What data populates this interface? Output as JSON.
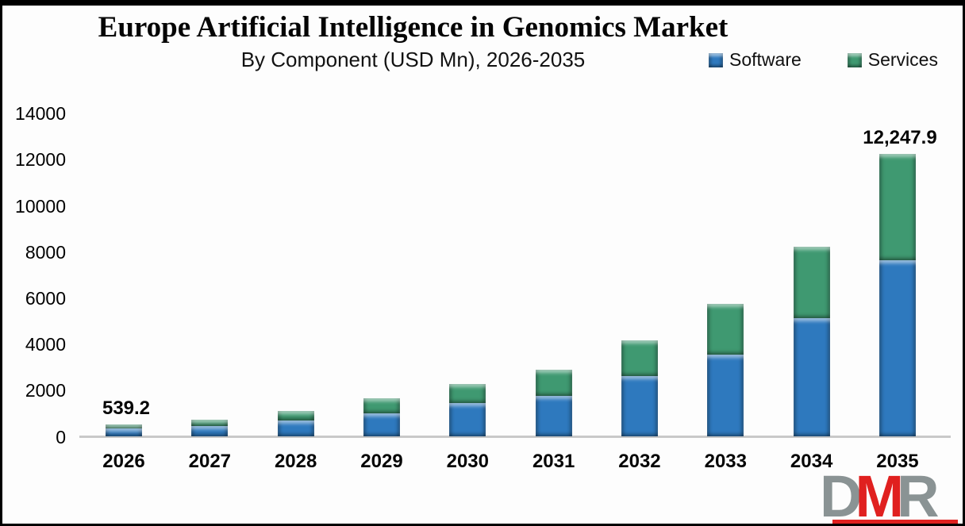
{
  "header": {
    "title": "Europe Artificial Intelligence in Genomics Market",
    "subtitle": "By Component (USD Mn), 2026-2035"
  },
  "legend": [
    {
      "label": "Software",
      "color": "#2E79BE"
    },
    {
      "label": "Services",
      "color": "#3F9971"
    }
  ],
  "chart_data": {
    "type": "bar",
    "stacked": true,
    "title": "Europe Artificial Intelligence in Genomics Market",
    "subtitle": "By Component (USD Mn), 2026-2035",
    "xlabel": "",
    "ylabel": "USD Mn",
    "categories": [
      "2026",
      "2027",
      "2028",
      "2029",
      "2030",
      "2031",
      "2032",
      "2033",
      "2034",
      "2035"
    ],
    "series": [
      {
        "name": "Software",
        "color": "#2E79BE",
        "values": [
          345,
          480,
          690,
          1000,
          1450,
          1760,
          2640,
          3540,
          5130,
          7650
        ]
      },
      {
        "name": "Services",
        "color": "#3F9971",
        "values": [
          194.2,
          265,
          420,
          650,
          850,
          1160,
          1550,
          2210,
          3110,
          4597.9
        ]
      }
    ],
    "totals": [
      539.2,
      745,
      1110,
      1650,
      2300,
      2920,
      4190,
      5750,
      8240,
      12247.9
    ],
    "data_labels": [
      {
        "index": 0,
        "text": "539.2"
      },
      {
        "index": 9,
        "text": "12,247.9"
      }
    ],
    "ylim": [
      0,
      14000
    ],
    "y_tick_step": 2000,
    "y_ticks": [
      0,
      2000,
      4000,
      6000,
      8000,
      10000,
      12000,
      14000
    ],
    "grid": false,
    "legend_position": "top-right",
    "axis_line_color": "#c9c9c9"
  },
  "logo": {
    "letters": [
      {
        "char": "D",
        "color": "#8A9394"
      },
      {
        "char": "M",
        "color": "#E0201F"
      },
      {
        "char": "R",
        "color": "#8A9394"
      }
    ],
    "underline_color": "#E0201F"
  }
}
